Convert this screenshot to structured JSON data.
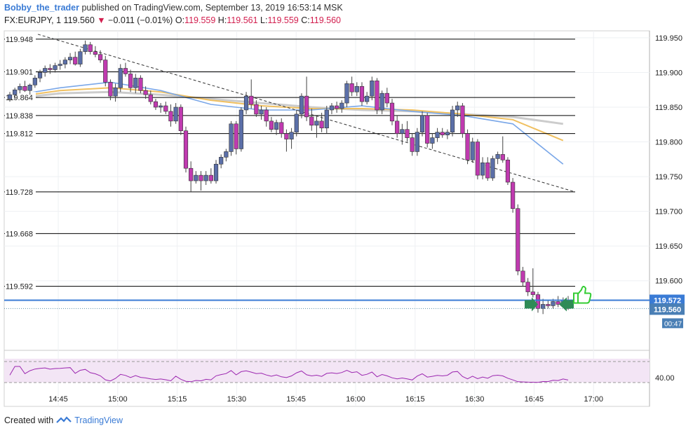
{
  "header": {
    "author": "Bobby_the_trader",
    "published": "published on TradingView.com, September 13, 2019 16:53:14 MSK",
    "symbol": "FX:EURJPY, 1",
    "last": "119.560",
    "change": "−0.011 (−0.01%)",
    "o_label": "O:",
    "o": "119.559",
    "h_label": "H:",
    "h": "119.561",
    "l_label": "L:",
    "l": "119.559",
    "c_label": "C:",
    "c": "119.560"
  },
  "footer": {
    "created_with": "Created with",
    "brand": "TradingView"
  },
  "colors": {
    "bull": "#5b6fa8",
    "bear": "#c03ab0",
    "ma_fast": "#7aa7e8",
    "ma_mid": "#f0c060",
    "ma_slow": "#cccccc",
    "hline": "#000000",
    "price_line": "#3a7bd5",
    "rsi": "#9c27b0",
    "rsi_band": "#f3e5f5",
    "arrow_green": "#2e8b57",
    "thumb": "#33cc33"
  },
  "chart_data": {
    "type": "candlestick",
    "price_axis": {
      "min": 119.52,
      "max": 119.96,
      "ticks": [
        "119.950",
        "119.900",
        "119.850",
        "119.800",
        "119.750",
        "119.700",
        "119.650",
        "119.600"
      ]
    },
    "time_axis": {
      "ticks": [
        "14:45",
        "15:00",
        "15:15",
        "15:30",
        "15:45",
        "16:00",
        "16:15",
        "16:30",
        "16:45",
        "17:00"
      ]
    },
    "levels": [
      "119.948",
      "119.901",
      "119.864",
      "119.838",
      "119.812",
      "119.728",
      "119.668",
      "119.592"
    ],
    "price_tags": {
      "line": "119.572",
      "last": "119.560",
      "countdown": "00:47"
    },
    "trendline": {
      "from": [
        0,
        119.955
      ],
      "to": [
        115,
        119.728
      ]
    },
    "rsi": {
      "tick": "40.00",
      "upper": 70,
      "lower": 30
    },
    "candles": [
      [
        119.862,
        119.872,
        119.858,
        119.868
      ],
      [
        119.868,
        119.878,
        119.862,
        119.875
      ],
      [
        119.875,
        119.884,
        119.87,
        119.88
      ],
      [
        119.88,
        119.888,
        119.872,
        119.874
      ],
      [
        119.874,
        119.884,
        119.868,
        119.882
      ],
      [
        119.882,
        119.896,
        119.878,
        119.892
      ],
      [
        119.892,
        119.904,
        119.886,
        119.9
      ],
      [
        119.9,
        119.91,
        119.894,
        119.906
      ],
      [
        119.906,
        119.912,
        119.898,
        119.904
      ],
      [
        119.904,
        119.914,
        119.9,
        119.91
      ],
      [
        119.91,
        119.918,
        119.904,
        119.912
      ],
      [
        119.912,
        119.922,
        119.906,
        119.918
      ],
      [
        119.918,
        119.928,
        119.912,
        119.922
      ],
      [
        119.922,
        119.93,
        119.91,
        119.912
      ],
      [
        119.912,
        119.934,
        119.908,
        119.93
      ],
      [
        119.93,
        119.946,
        119.926,
        119.94
      ],
      [
        119.94,
        119.944,
        119.926,
        119.93
      ],
      [
        119.93,
        119.938,
        119.922,
        119.926
      ],
      [
        119.926,
        119.932,
        119.914,
        119.918
      ],
      [
        119.918,
        119.924,
        119.88,
        119.886
      ],
      [
        119.886,
        119.89,
        119.86,
        119.866
      ],
      [
        119.866,
        119.884,
        119.858,
        119.878
      ],
      [
        119.878,
        119.912,
        119.872,
        119.906
      ],
      [
        119.906,
        119.914,
        119.894,
        119.898
      ],
      [
        119.898,
        119.904,
        119.872,
        119.878
      ],
      [
        119.878,
        119.898,
        119.87,
        119.892
      ],
      [
        119.892,
        119.896,
        119.87,
        119.874
      ],
      [
        119.874,
        119.88,
        119.862,
        119.868
      ],
      [
        119.868,
        119.874,
        119.854,
        119.858
      ],
      [
        119.858,
        119.862,
        119.846,
        119.85
      ],
      [
        119.85,
        119.856,
        119.842,
        119.852
      ],
      [
        119.852,
        119.858,
        119.84,
        119.844
      ],
      [
        119.844,
        119.854,
        119.822,
        119.83
      ],
      [
        119.83,
        119.856,
        119.826,
        119.85
      ],
      [
        119.85,
        119.854,
        119.81,
        119.816
      ],
      [
        119.816,
        119.822,
        119.756,
        119.762
      ],
      [
        119.762,
        119.772,
        119.728,
        119.744
      ],
      [
        119.744,
        119.758,
        119.74,
        119.752
      ],
      [
        119.752,
        119.758,
        119.73,
        119.744
      ],
      [
        119.744,
        119.758,
        119.738,
        119.752
      ],
      [
        119.752,
        119.762,
        119.74,
        119.744
      ],
      [
        119.744,
        119.774,
        119.74,
        119.768
      ],
      [
        119.768,
        119.782,
        119.762,
        119.778
      ],
      [
        119.778,
        119.79,
        119.772,
        119.786
      ],
      [
        119.786,
        119.83,
        119.78,
        119.826
      ],
      [
        119.826,
        119.83,
        119.782,
        119.79
      ],
      [
        119.79,
        119.85,
        119.786,
        119.846
      ],
      [
        119.846,
        119.872,
        119.84,
        119.866
      ],
      [
        119.866,
        119.89,
        119.848,
        119.854
      ],
      [
        119.854,
        119.86,
        119.836,
        119.84
      ],
      [
        119.84,
        119.852,
        119.832,
        119.846
      ],
      [
        119.846,
        119.85,
        119.822,
        119.83
      ],
      [
        119.83,
        119.836,
        119.814,
        119.818
      ],
      [
        119.818,
        119.832,
        119.81,
        119.828
      ],
      [
        119.828,
        119.834,
        119.806,
        119.812
      ],
      [
        119.812,
        119.818,
        119.786,
        119.804
      ],
      [
        119.804,
        119.82,
        119.79,
        119.814
      ],
      [
        119.814,
        119.846,
        119.808,
        119.84
      ],
      [
        119.84,
        119.87,
        119.834,
        119.866
      ],
      [
        119.866,
        119.894,
        119.83,
        119.836
      ],
      [
        119.836,
        119.848,
        119.816,
        119.824
      ],
      [
        119.824,
        119.838,
        119.806,
        119.83
      ],
      [
        119.83,
        119.842,
        119.814,
        119.82
      ],
      [
        119.82,
        119.852,
        119.812,
        119.846
      ],
      [
        119.846,
        119.856,
        119.84,
        119.852
      ],
      [
        119.852,
        119.858,
        119.842,
        119.848
      ],
      [
        119.848,
        119.86,
        119.842,
        119.856
      ],
      [
        119.856,
        119.888,
        119.85,
        119.884
      ],
      [
        119.884,
        119.894,
        119.866,
        119.872
      ],
      [
        119.872,
        119.886,
        119.866,
        119.88
      ],
      [
        119.88,
        119.886,
        119.852,
        119.858
      ],
      [
        119.858,
        119.872,
        119.854,
        119.866
      ],
      [
        119.866,
        119.894,
        119.86,
        119.888
      ],
      [
        119.888,
        119.892,
        119.84,
        119.846
      ],
      [
        119.846,
        119.874,
        119.84,
        119.87
      ],
      [
        119.87,
        119.878,
        119.85,
        119.856
      ],
      [
        119.856,
        119.862,
        119.824,
        119.83
      ],
      [
        119.83,
        119.838,
        119.806,
        119.812
      ],
      [
        119.812,
        119.826,
        119.796,
        119.818
      ],
      [
        119.818,
        119.83,
        119.8,
        119.806
      ],
      [
        119.806,
        119.812,
        119.78,
        119.786
      ],
      [
        119.786,
        119.82,
        119.78,
        119.814
      ],
      [
        119.814,
        119.844,
        119.808,
        119.838
      ],
      [
        119.838,
        119.842,
        119.792,
        119.798
      ],
      [
        119.798,
        119.812,
        119.79,
        119.806
      ],
      [
        119.806,
        119.82,
        119.8,
        119.814
      ],
      [
        119.814,
        119.82,
        119.806,
        119.81
      ],
      [
        119.81,
        119.818,
        119.804,
        119.814
      ],
      [
        119.814,
        119.852,
        119.808,
        119.846
      ],
      [
        119.846,
        119.858,
        119.836,
        119.852
      ],
      [
        119.852,
        119.856,
        119.806,
        119.812
      ],
      [
        119.812,
        119.818,
        119.768,
        119.774
      ],
      [
        119.774,
        119.806,
        119.77,
        119.8
      ],
      [
        119.8,
        119.804,
        119.746,
        119.752
      ],
      [
        119.752,
        119.778,
        119.746,
        119.77
      ],
      [
        119.77,
        119.778,
        119.744,
        119.748
      ],
      [
        119.748,
        119.78,
        119.744,
        119.776
      ],
      [
        119.776,
        119.786,
        119.768,
        119.782
      ],
      [
        119.782,
        119.808,
        119.77,
        119.774
      ],
      [
        119.774,
        119.778,
        119.738,
        119.742
      ],
      [
        119.742,
        119.748,
        119.698,
        119.704
      ],
      [
        119.704,
        119.71,
        119.608,
        119.614
      ],
      [
        119.614,
        119.62,
        119.592,
        119.598
      ],
      [
        119.598,
        119.604,
        119.578,
        119.584
      ],
      [
        119.584,
        119.618,
        119.576,
        119.58
      ],
      [
        119.58,
        119.584,
        119.554,
        119.56
      ],
      [
        119.56,
        119.574,
        119.552,
        119.566
      ],
      [
        119.566,
        119.572,
        119.56,
        119.564
      ],
      [
        119.564,
        119.574,
        119.56,
        119.57
      ],
      [
        119.57,
        119.578,
        119.562,
        119.566
      ],
      [
        119.566,
        119.576,
        119.562,
        119.572
      ],
      [
        119.572,
        119.578,
        119.558,
        119.56
      ]
    ]
  }
}
